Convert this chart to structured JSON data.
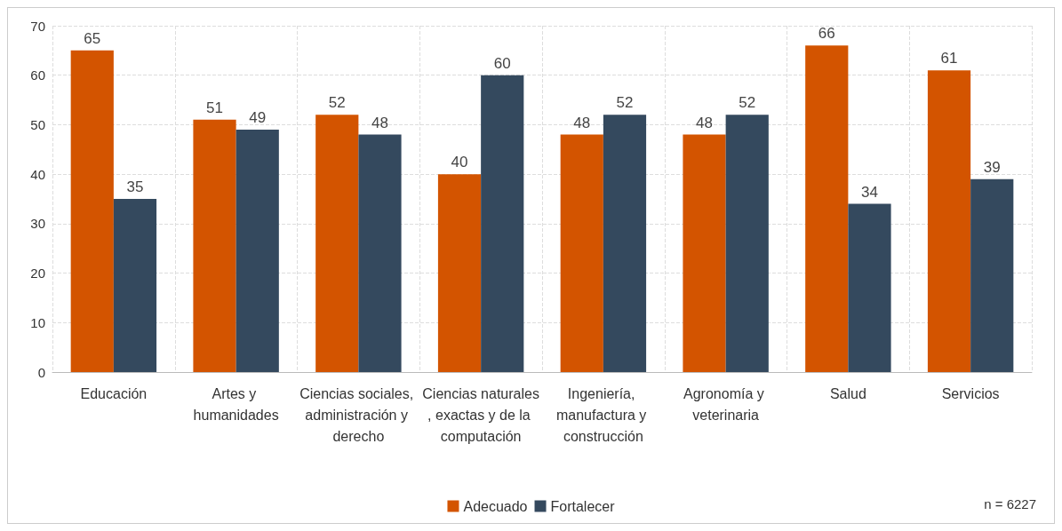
{
  "chart_data": {
    "type": "bar",
    "categories": [
      "Educación",
      "Artes y humanidades",
      "Ciencias sociales, administración y derecho",
      "Ciencias naturales, exactas y de la computación",
      "Ingeniería, manufactura y construcción",
      "Agronomía y veterinaria",
      "Salud",
      "Servicios"
    ],
    "series": [
      {
        "name": "Adecuado",
        "color": "#d35400",
        "values": [
          65,
          51,
          52,
          40,
          48,
          48,
          66,
          61
        ]
      },
      {
        "name": "Fortalecer",
        "color": "#34495e",
        "values": [
          35,
          49,
          48,
          60,
          52,
          52,
          34,
          39
        ]
      }
    ],
    "ylim": [
      0,
      70
    ],
    "yticks": [
      0,
      10,
      20,
      30,
      40,
      50,
      60,
      70
    ],
    "grid": true,
    "legend": "bottom",
    "data_labels": true,
    "annotations": [
      "n = 6227"
    ]
  }
}
